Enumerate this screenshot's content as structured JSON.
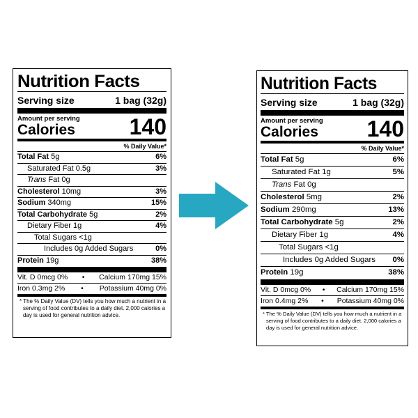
{
  "left_label": {
    "title": "Nutrition Facts",
    "serving_label": "Serving size",
    "serving_value": "1 bag (32g)",
    "amount_per_serving": "Amount per serving",
    "calories_label": "Calories",
    "calories_value": "140",
    "dv_header": "% Daily Value*",
    "total_fat_label": "Total Fat",
    "total_fat_amount": "5g",
    "total_fat_pct": "6%",
    "sat_fat_label": "Saturated Fat 0.5g",
    "sat_fat_pct": "3%",
    "trans_fat_label": "Trans",
    "trans_fat_amount": "Fat 0g",
    "cholesterol_label": "Cholesterol",
    "cholesterol_amount": "10mg",
    "cholesterol_pct": "3%",
    "sodium_label": "Sodium",
    "sodium_amount": "340mg",
    "sodium_pct": "15%",
    "carb_label": "Total Carbohydrate",
    "carb_amount": "5g",
    "carb_pct": "2%",
    "fiber_label": "Dietary Fiber 1g",
    "fiber_pct": "4%",
    "sugars_label": "Total Sugars <1g",
    "added_sugars_label": "Includes 0g Added Sugars",
    "added_sugars_pct": "0%",
    "protein_label": "Protein",
    "protein_amount": "19g",
    "protein_pct": "38%",
    "vitd": "Vit. D 0mcg 0%",
    "calcium": "Calcium 170mg 15%",
    "iron": "Iron 0.3mg 2%",
    "potassium": "Potassium 40mg 0%",
    "bullet": "•",
    "footnote": "* The % Daily Value (DV) tells you how much a nutrient in a serving of food contributes to a daily diet. 2,000 calories a day is used for general nutrition advice."
  },
  "right_label": {
    "title": "Nutrition Facts",
    "serving_label": "Serving size",
    "serving_value": "1 bag (32g)",
    "amount_per_serving": "Amount per serving",
    "calories_label": "Calories",
    "calories_value": "140",
    "dv_header": "% Daily Value*",
    "total_fat_label": "Total Fat",
    "total_fat_amount": "5g",
    "total_fat_pct": "6%",
    "sat_fat_label": "Saturated Fat 1g",
    "sat_fat_pct": "5%",
    "trans_fat_label": "Trans",
    "trans_fat_amount": "Fat 0g",
    "cholesterol_label": "Cholesterol",
    "cholesterol_amount": "5mg",
    "cholesterol_pct": "2%",
    "sodium_label": "Sodium",
    "sodium_amount": "290mg",
    "sodium_pct": "13%",
    "carb_label": "Total Carbohydrate",
    "carb_amount": "5g",
    "carb_pct": "2%",
    "fiber_label": "Dietary Fiber 1g",
    "fiber_pct": "4%",
    "sugars_label": "Total Sugars <1g",
    "added_sugars_label": "Includes 0g Added Sugars",
    "added_sugars_pct": "0%",
    "protein_label": "Protein",
    "protein_amount": "19g",
    "protein_pct": "38%",
    "vitd": "Vit. D 0mcg 0%",
    "calcium": "Calcium 170mg 15%",
    "iron": "Iron 0.4mg 2%",
    "potassium": "Potassium 40mg 0%",
    "bullet": "•",
    "footnote": "* The % Daily Value (DV) tells you how much a nutrient in a serving of food contributes to a daily diet. 2,000 calories a day is used for general nutrition advice."
  },
  "arrow": {
    "icon": "arrow-right-icon",
    "color": "#27a7c1"
  }
}
